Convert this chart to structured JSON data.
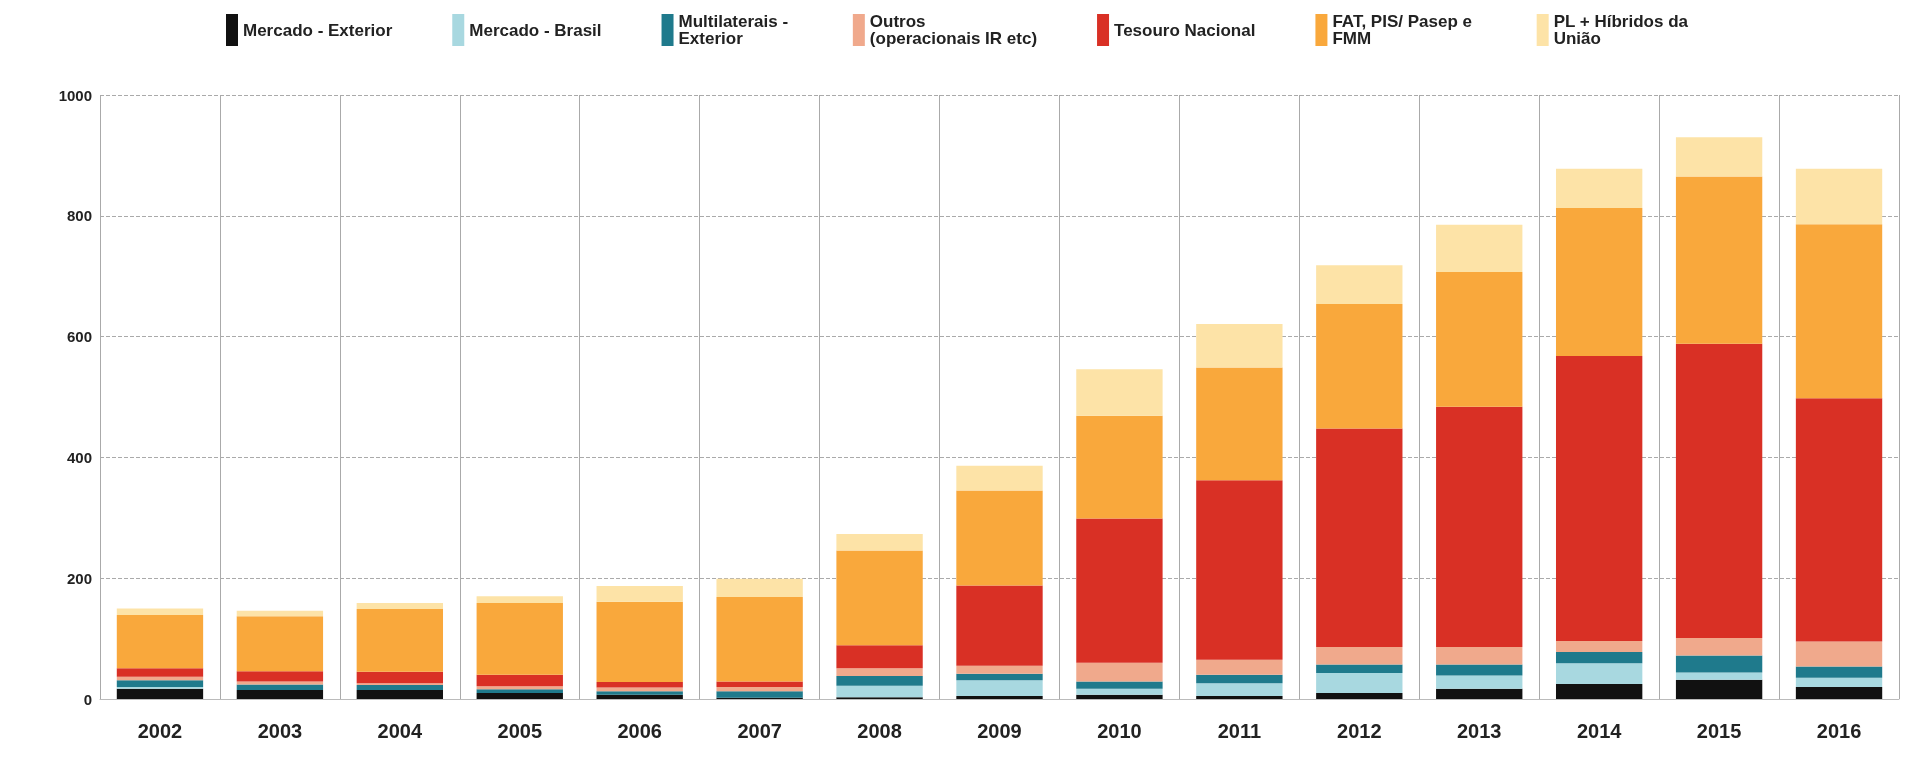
{
  "chart_data": {
    "type": "bar",
    "stacked": true,
    "grid": true,
    "legend": "top",
    "ylim": [
      0,
      1000
    ],
    "yticks": [
      0,
      200,
      400,
      600,
      800,
      1000
    ],
    "categories": [
      "2002",
      "2003",
      "2004",
      "2005",
      "2006",
      "2007",
      "2008",
      "2009",
      "2010",
      "2011",
      "2012",
      "2013",
      "2014",
      "2015",
      "2016"
    ],
    "series": [
      {
        "name": "Mercado - Exterior",
        "color": "#111111",
        "values": [
          17,
          15,
          15,
          10,
          7,
          2,
          3,
          5,
          7,
          5,
          10,
          17,
          25,
          32,
          20
        ]
      },
      {
        "name": "Mercado - Brasil",
        "color": "#a8d8e0",
        "values": [
          3,
          null,
          null,
          null,
          null,
          null,
          19,
          26,
          10,
          21,
          33,
          22,
          34,
          12,
          15
        ]
      },
      {
        "name": "Multilaterais - Exterior",
        "color": "#1f7a8c",
        "values": [
          11,
          9,
          8,
          6,
          6,
          11,
          16,
          11,
          12,
          14,
          14,
          18,
          19,
          28,
          19
        ]
      },
      {
        "name": "Outros (operacionais IR etc)",
        "color": "#f0a98c",
        "values": [
          6,
          5,
          3,
          5,
          6,
          7,
          13,
          13,
          31,
          25,
          29,
          29,
          18,
          29,
          41
        ]
      },
      {
        "name": "Tesouro Nacional",
        "color": "#d93025",
        "values": [
          14,
          17,
          19,
          19,
          9,
          9,
          38,
          133,
          239,
          297,
          362,
          398,
          472,
          487,
          403
        ]
      },
      {
        "name": "FAT, PIS/ Pasep e FMM",
        "color": "#f9a83c",
        "values": [
          88,
          91,
          104,
          119,
          133,
          140,
          157,
          157,
          170,
          187,
          206,
          223,
          245,
          277,
          288
        ]
      },
      {
        "name": "PL + Híbridos da União",
        "color": "#fde3a7",
        "values": [
          11,
          9,
          10,
          11,
          26,
          30,
          27,
          41,
          77,
          72,
          64,
          78,
          65,
          65,
          92
        ]
      }
    ]
  }
}
